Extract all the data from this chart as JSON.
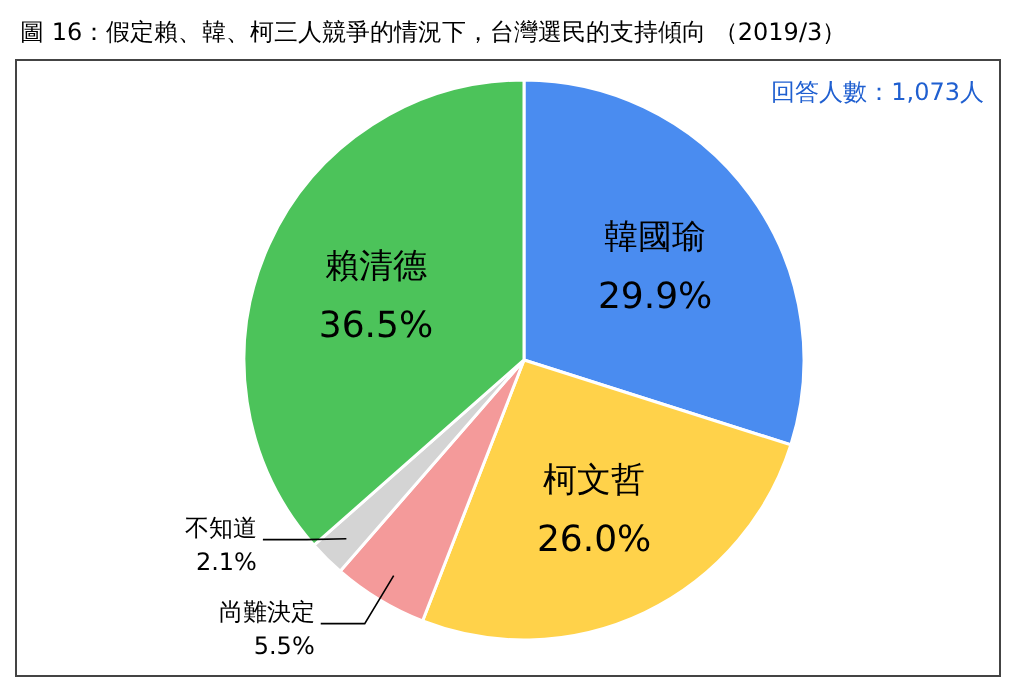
{
  "chart_data": {
    "type": "pie",
    "title": "圖 16：假定賴、韓、柯三人競爭的情況下，台灣選民的支持傾向 （2019/3）",
    "categories": [
      "韓國瑜",
      "柯文哲",
      "尚難決定",
      "不知道",
      "賴清德"
    ],
    "values": [
      29.9,
      26.0,
      5.5,
      2.1,
      36.5
    ],
    "value_labels": [
      "29.9%",
      "26.0%",
      "5.5%",
      "2.1%",
      "36.5%"
    ],
    "colors": [
      "#4a8cf0",
      "#ffd24a",
      "#f49a9a",
      "#d4d4d4",
      "#4cc35a"
    ],
    "annotations": [
      "回答人數：1,073人"
    ]
  }
}
